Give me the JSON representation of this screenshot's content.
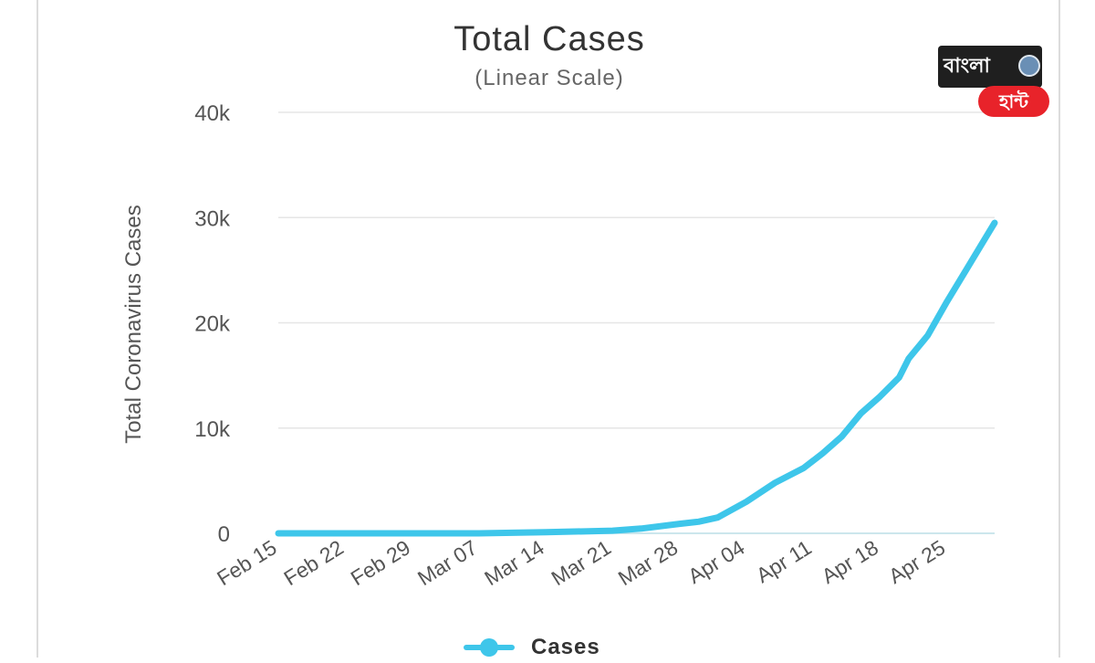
{
  "chart_data": {
    "type": "line",
    "title": "Total Cases",
    "subtitle": "(Linear Scale)",
    "xlabel": "",
    "ylabel": "Total Coronavirus Cases",
    "ylim": [
      0,
      40000
    ],
    "yticks": [
      0,
      10000,
      20000,
      30000,
      40000
    ],
    "ytick_labels": [
      "0",
      "10k",
      "20k",
      "30k",
      "40k"
    ],
    "x_tick_labels": [
      "Feb 15",
      "Feb 22",
      "Feb 29",
      "Mar 07",
      "Mar 14",
      "Mar 21",
      "Mar 28",
      "Apr 04",
      "Apr 11",
      "Apr 18",
      "Apr 25"
    ],
    "x_tick_days": [
      0,
      7,
      14,
      21,
      28,
      35,
      42,
      49,
      56,
      63,
      70
    ],
    "grid": true,
    "legend_position": "bottom-center",
    "series": [
      {
        "name": "Cases",
        "color": "#3ec6ea",
        "points": [
          [
            0,
            0
          ],
          [
            7,
            0
          ],
          [
            14,
            0
          ],
          [
            21,
            0
          ],
          [
            28,
            100
          ],
          [
            35,
            250
          ],
          [
            38,
            450
          ],
          [
            42,
            900
          ],
          [
            44,
            1100
          ],
          [
            46,
            1500
          ],
          [
            49,
            3000
          ],
          [
            52,
            4800
          ],
          [
            55,
            6200
          ],
          [
            57,
            7600
          ],
          [
            59,
            9200
          ],
          [
            61,
            11400
          ],
          [
            63,
            13000
          ],
          [
            65,
            14800
          ],
          [
            66,
            16600
          ],
          [
            68,
            18800
          ],
          [
            70,
            22000
          ],
          [
            72,
            25000
          ],
          [
            74,
            28000
          ],
          [
            75,
            29500
          ]
        ]
      }
    ]
  },
  "watermark": {
    "text": "বাংলা",
    "subtext": "হান্ট"
  }
}
